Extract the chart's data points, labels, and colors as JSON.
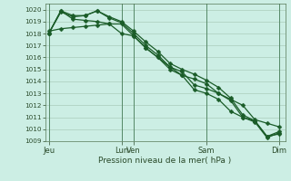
{
  "background_color": "#cceee4",
  "grid_color": "#aaccbb",
  "line_color": "#1a5c28",
  "marker": "D",
  "marker_size": 2.5,
  "linewidth": 0.9,
  "xlabel": "Pression niveau de la mer( hPa )",
  "xlabel_fontsize": 6.5,
  "ylim": [
    1009,
    1020.5
  ],
  "yticks": [
    1009,
    1010,
    1011,
    1012,
    1013,
    1014,
    1015,
    1016,
    1017,
    1018,
    1019,
    1020
  ],
  "ytick_fontsize": 5.2,
  "xtick_fontsize": 6.0,
  "xtick_labels": [
    "Jeu",
    "Lun",
    "Ven",
    "Sam",
    "Dim"
  ],
  "xtick_positions": [
    0,
    6,
    7,
    13,
    19
  ],
  "xlim": [
    -0.3,
    19.5
  ],
  "vline_positions": [
    0,
    6,
    7,
    13,
    19
  ],
  "series": [
    [
      1018.0,
      1019.8,
      1019.4,
      1019.5,
      1019.9,
      1019.3,
      1018.9,
      1018.0,
      1017.0,
      1016.2,
      1015.2,
      1014.8,
      1013.7,
      1013.4,
      1013.0,
      1012.4,
      1011.0,
      1010.7,
      1009.4,
      1009.6
    ],
    [
      1018.0,
      1019.9,
      1019.5,
      1019.5,
      1019.9,
      1019.4,
      1019.0,
      1018.2,
      1017.3,
      1016.5,
      1015.5,
      1015.0,
      1014.6,
      1014.1,
      1013.5,
      1012.6,
      1011.2,
      1010.7,
      1009.4,
      1009.8
    ],
    [
      1018.0,
      1019.9,
      1019.2,
      1019.1,
      1019.0,
      1018.8,
      1018.0,
      1017.8,
      1016.8,
      1016.0,
      1015.2,
      1014.5,
      1014.2,
      1013.8,
      1013.0,
      1012.5,
      1012.0,
      1010.8,
      1010.5,
      1010.2
    ],
    [
      1018.2,
      1018.4,
      1018.5,
      1018.6,
      1018.7,
      1018.8,
      1018.8,
      1017.8,
      1016.8,
      1016.0,
      1015.0,
      1014.5,
      1013.3,
      1013.0,
      1012.5,
      1011.5,
      1011.0,
      1010.6,
      1009.3,
      1009.7
    ]
  ]
}
